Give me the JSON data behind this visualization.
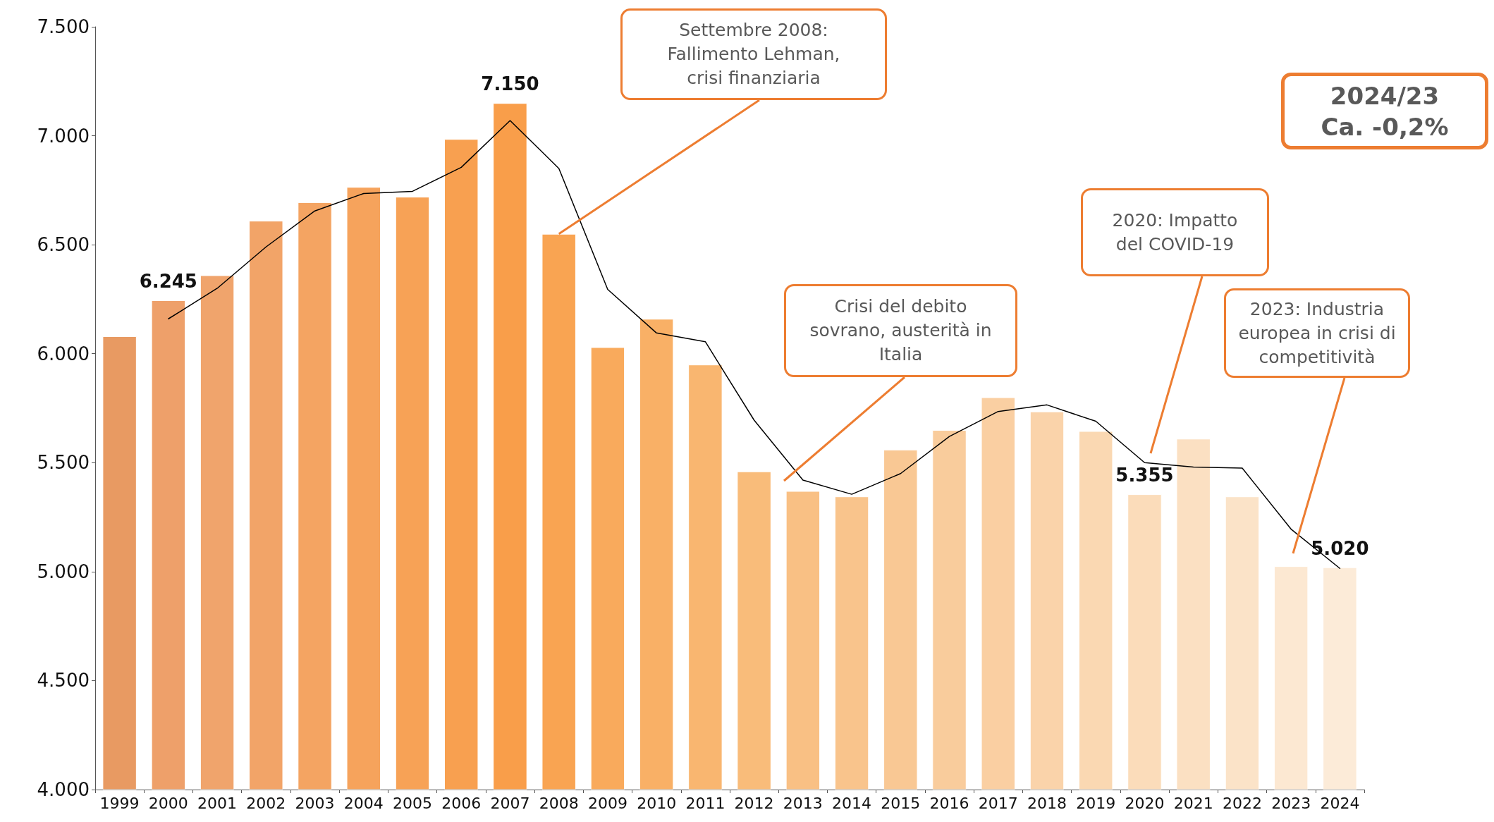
{
  "chart_data": {
    "type": "bar",
    "categories": [
      "1999",
      "2000",
      "2001",
      "2002",
      "2003",
      "2004",
      "2005",
      "2006",
      "2007",
      "2008",
      "2009",
      "2010",
      "2011",
      "2012",
      "2013",
      "2014",
      "2015",
      "2016",
      "2017",
      "2018",
      "2019",
      "2020",
      "2021",
      "2022",
      "2023",
      "2024"
    ],
    "series": [
      {
        "values": [
          6080,
          6245,
          6360,
          6610,
          6695,
          6765,
          6720,
          6985,
          7150,
          6550,
          6030,
          6160,
          5950,
          5460,
          5370,
          5345,
          5560,
          5650,
          5800,
          5735,
          5645,
          5355,
          5610,
          5345,
          5025,
          5020
        ],
        "colors": [
          "#e89a62",
          "#eea06a",
          "#f0a46c",
          "#f2a468",
          "#f4a462",
          "#f6a35c",
          "#f7a256",
          "#f8a050",
          "#f99e4a",
          "#f9a452",
          "#f9aa5c",
          "#f9b066",
          "#f9b670",
          "#f9bc7a",
          "#f9c084",
          "#f9c48c",
          "#f9c894",
          "#f9cc9c",
          "#facfa2",
          "#fad3aa",
          "#fad8b2",
          "#fbdcba",
          "#fbe0c2",
          "#fbe3c8",
          "#fce8d2",
          "#fcebd8"
        ],
        "value_labels": [
          null,
          "6.245",
          null,
          null,
          null,
          null,
          null,
          null,
          "7.150",
          null,
          null,
          null,
          null,
          null,
          null,
          null,
          null,
          null,
          null,
          null,
          null,
          "5.355",
          null,
          null,
          null,
          "5.020"
        ]
      },
      {
        "type": "line",
        "color": "#000000",
        "values": [
          null,
          6160,
          6300,
          6490,
          6655,
          6735,
          6745,
          6855,
          7070,
          6850,
          6295,
          6095,
          6055,
          5695,
          5420,
          5355,
          5450,
          5620,
          5735,
          5765,
          5690,
          5500,
          5480,
          5475,
          5195,
          5015
        ]
      }
    ],
    "ylim": [
      4000,
      7500
    ],
    "yticks": [
      {
        "value": 4000,
        "label": "4.000"
      },
      {
        "value": 4500,
        "label": "4.500"
      },
      {
        "value": 5000,
        "label": "5.000"
      },
      {
        "value": 5500,
        "label": "5.500"
      },
      {
        "value": 6000,
        "label": "6.000"
      },
      {
        "value": 6500,
        "label": "6.500"
      },
      {
        "value": 7000,
        "label": "7.000"
      },
      {
        "value": 7500,
        "label": "7.500"
      }
    ],
    "grid": false,
    "marker": "none",
    "line_style": "solid",
    "annotations": [
      {
        "text": "Settembre 2008: Fallimento Lehman, crisi finanziaria",
        "x": "2008",
        "y": 6550
      },
      "Crisi del debito sovrano, austerità in Italia",
      "2020: Impatto del COVID-19",
      "2023: Industria europea in crisi di competitività",
      "2024/23 Ca. -0,2%"
    ]
  }
}
